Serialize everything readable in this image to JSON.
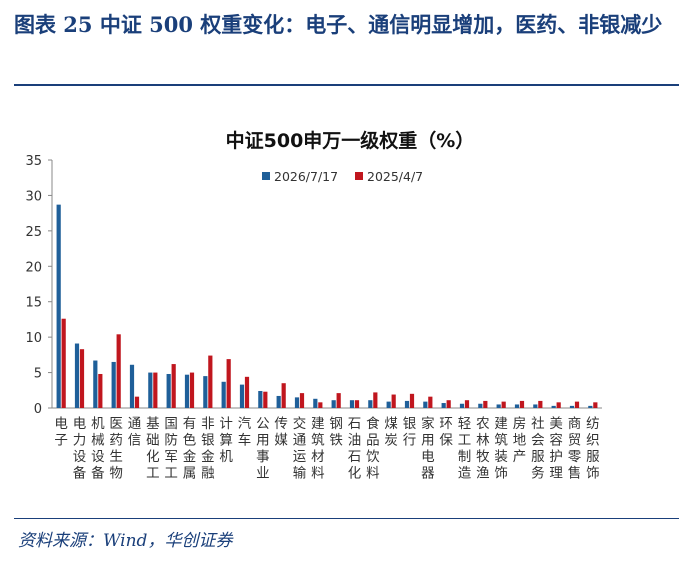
{
  "header": {
    "title": "图表 25   中证 500 权重变化：电子、通信明显增加，医药、非银减少"
  },
  "source": "资料来源：Wind，华创证券",
  "chart_data": {
    "type": "bar",
    "title": "中证500申万一级权重（%）",
    "ylim": [
      0,
      35
    ],
    "yticks": [
      0,
      5,
      10,
      15,
      20,
      25,
      30,
      35
    ],
    "grid": false,
    "legend": "top-center",
    "categories": [
      "电子",
      "电力设备",
      "机械设备",
      "医药生物",
      "通信",
      "基础化工",
      "国防军工",
      "有色金属",
      "非银金融",
      "计算机",
      "汽车",
      "公用事业",
      "传媒",
      "交通运输",
      "建筑材料",
      "钢铁",
      "石油石化",
      "食品饮料",
      "煤炭",
      "银行",
      "家用电器",
      "环保",
      "轻工制造",
      "农林牧渔",
      "建筑装饰",
      "房地产",
      "社会服务",
      "美容护理",
      "商贸零售",
      "纺织服饰"
    ],
    "series": [
      {
        "name": "2026/7/17",
        "color": "#1f5f99",
        "values": [
          28.7,
          9.1,
          6.7,
          6.5,
          6.1,
          5.0,
          4.8,
          4.7,
          4.5,
          3.7,
          3.3,
          2.4,
          1.7,
          1.5,
          1.3,
          1.1,
          1.1,
          1.1,
          0.9,
          1.0,
          0.9,
          0.7,
          0.6,
          0.6,
          0.5,
          0.5,
          0.5,
          0.3,
          0.3,
          0.3
        ]
      },
      {
        "name": "2025/4/7",
        "color": "#c0161e",
        "values": [
          12.6,
          8.3,
          4.8,
          10.4,
          1.6,
          5.0,
          6.2,
          5.0,
          7.4,
          6.9,
          4.4,
          2.3,
          3.5,
          2.1,
          0.8,
          2.1,
          1.1,
          2.2,
          1.9,
          2.0,
          1.6,
          1.1,
          1.1,
          1.0,
          0.9,
          1.0,
          1.0,
          0.8,
          0.9,
          0.8
        ]
      }
    ]
  }
}
